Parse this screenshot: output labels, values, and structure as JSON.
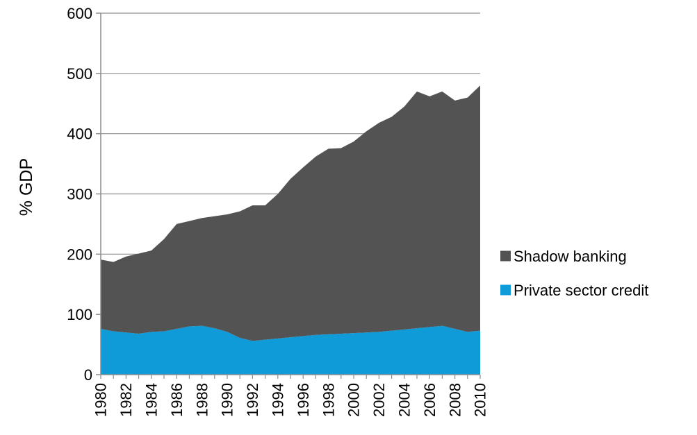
{
  "chart_data": {
    "type": "area",
    "stacked": true,
    "title": "",
    "xlabel": "",
    "ylabel": "% GDP",
    "ylim": [
      0,
      600
    ],
    "yticks": [
      0,
      100,
      200,
      300,
      400,
      500,
      600
    ],
    "grid": "horizontal",
    "legend_position": "right",
    "x": [
      1980,
      1981,
      1982,
      1983,
      1984,
      1985,
      1986,
      1987,
      1988,
      1989,
      1990,
      1991,
      1992,
      1993,
      1994,
      1995,
      1996,
      1997,
      1998,
      1999,
      2000,
      2001,
      2002,
      2003,
      2004,
      2005,
      2006,
      2007,
      2008,
      2009,
      2010
    ],
    "x_tick_labels": [
      "1980",
      "1982",
      "1984",
      "1986",
      "1988",
      "1990",
      "1992",
      "1994",
      "1996",
      "1998",
      "2000",
      "2002",
      "2004",
      "2006",
      "2008",
      "2010"
    ],
    "series": [
      {
        "name": "Private sector credit",
        "color": "#0f9ad8",
        "values": [
          76,
          72,
          70,
          68,
          71,
          72,
          76,
          80,
          81,
          77,
          71,
          61,
          56,
          58,
          60,
          62,
          64,
          66,
          67,
          68,
          69,
          70,
          71,
          73,
          75,
          77,
          79,
          81,
          76,
          71,
          73
        ]
      },
      {
        "name": "Shadow banking",
        "color": "#535353",
        "values": [
          115,
          115,
          126,
          133,
          135,
          153,
          174,
          175,
          179,
          186,
          195,
          210,
          225,
          223,
          240,
          263,
          280,
          296,
          308,
          308,
          318,
          334,
          347,
          355,
          370,
          393,
          383,
          389,
          379,
          389,
          407
        ]
      }
    ]
  }
}
